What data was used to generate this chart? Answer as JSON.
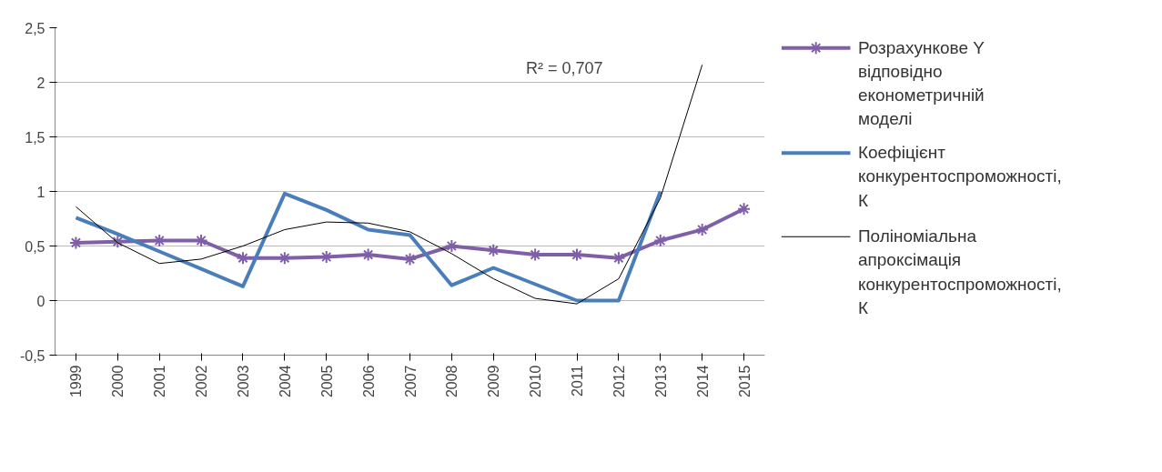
{
  "chart_data": {
    "type": "line",
    "categories": [
      "1999",
      "2000",
      "2001",
      "2002",
      "2003",
      "2004",
      "2005",
      "2006",
      "2007",
      "2008",
      "2009",
      "2010",
      "2011",
      "2012",
      "2013",
      "2014",
      "2015"
    ],
    "series": [
      {
        "name": "Розрахункове Y відповідно економетричній моделі",
        "color": "#7f5fa8",
        "marker": "cross",
        "values": [
          0.53,
          0.54,
          0.55,
          0.55,
          0.39,
          0.39,
          0.4,
          0.42,
          0.38,
          0.5,
          0.46,
          0.42,
          0.42,
          0.39,
          0.55,
          0.65,
          0.84
        ]
      },
      {
        "name": "Коефіцієнт конкурентоспроможності, К",
        "color": "#4a7ebb",
        "marker": "none",
        "values": [
          0.76,
          0.61,
          0.45,
          0.29,
          0.13,
          0.98,
          0.83,
          0.65,
          0.6,
          0.14,
          0.3,
          0.15,
          0.0,
          0.0,
          1.0,
          null,
          null
        ]
      },
      {
        "name": "Поліноміальна апроксімація конкурентоспроможності, К",
        "color": "#000000",
        "marker": "none",
        "values": [
          0.86,
          0.53,
          0.34,
          0.38,
          0.5,
          0.65,
          0.72,
          0.71,
          0.63,
          0.43,
          0.2,
          0.02,
          -0.03,
          0.2,
          0.94,
          2.16,
          null
        ]
      }
    ],
    "ylim": [
      -0.5,
      2.5
    ],
    "yticks": [
      {
        "value": -0.5,
        "label": "-0,5"
      },
      0,
      {
        "value": 0.5,
        "label": "0,5"
      },
      1,
      {
        "value": 1.5,
        "label": "1,5"
      },
      2,
      {
        "value": 2.5,
        "label": "2,5"
      }
    ],
    "grid": "y",
    "legend": "right",
    "annotations": [
      "R² = 0,707"
    ]
  }
}
